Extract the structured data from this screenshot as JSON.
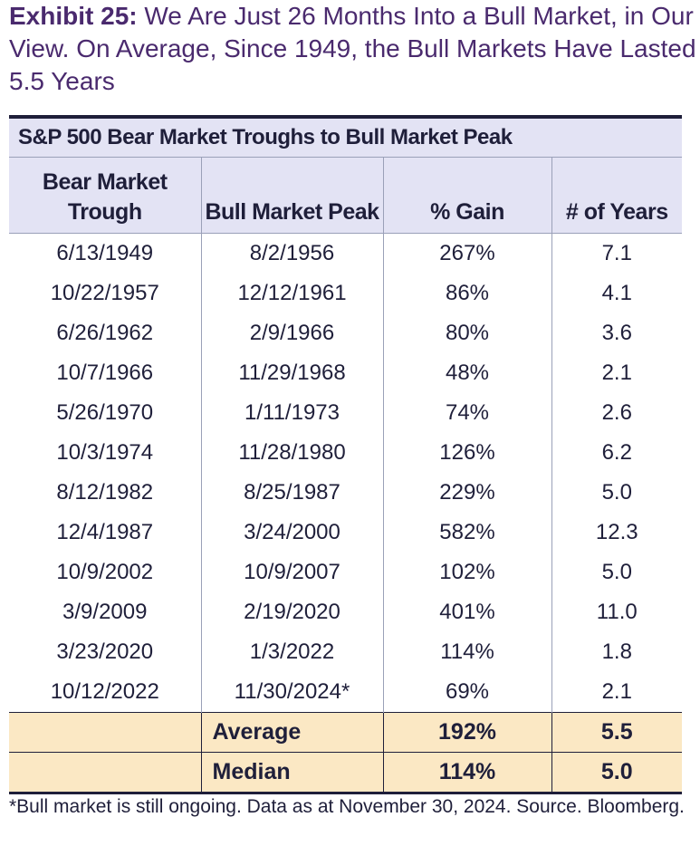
{
  "title": {
    "exhibit": "Exhibit 25:",
    "text": " We Are Just 26 Months Into a Bull Market, in Our View. On Average, Since 1949, the Bull Markets Have Lasted 5.5 Years"
  },
  "table": {
    "caption": "S&P 500 Bear Market Troughs to Bull Market Peak",
    "headers": [
      "Bear Market Trough",
      "Bull Market Peak",
      "% Gain",
      "# of Years"
    ],
    "rows": [
      [
        "6/13/1949",
        "8/2/1956",
        "267%",
        "7.1"
      ],
      [
        "10/22/1957",
        "12/12/1961",
        "86%",
        "4.1"
      ],
      [
        "6/26/1962",
        "2/9/1966",
        "80%",
        "3.6"
      ],
      [
        "10/7/1966",
        "11/29/1968",
        "48%",
        "2.1"
      ],
      [
        "5/26/1970",
        "1/11/1973",
        "74%",
        "2.6"
      ],
      [
        "10/3/1974",
        "11/28/1980",
        "126%",
        "6.2"
      ],
      [
        "8/12/1982",
        "8/25/1987",
        "229%",
        "5.0"
      ],
      [
        "12/4/1987",
        "3/24/2000",
        "582%",
        "12.3"
      ],
      [
        "10/9/2002",
        "10/9/2007",
        "102%",
        "5.0"
      ],
      [
        "3/9/2009",
        "2/19/2020",
        "401%",
        "11.0"
      ],
      [
        "3/23/2020",
        "1/3/2022",
        "114%",
        "1.8"
      ],
      [
        "10/12/2022",
        "11/30/2024*",
        "69%",
        "2.1"
      ]
    ],
    "summary": [
      {
        "label": "Average",
        "gain": "192%",
        "years": "5.5"
      },
      {
        "label": "Median",
        "gain": "114%",
        "years": "5.0"
      }
    ]
  },
  "footnote": "*Bull market is still ongoing. Data as at November 30, 2024. Source. Bloomberg.",
  "colors": {
    "title": "#4a2a6e",
    "header_bg": "#e3e3f4",
    "summary_bg": "#fbe8c4",
    "text": "#1f1f3a"
  }
}
